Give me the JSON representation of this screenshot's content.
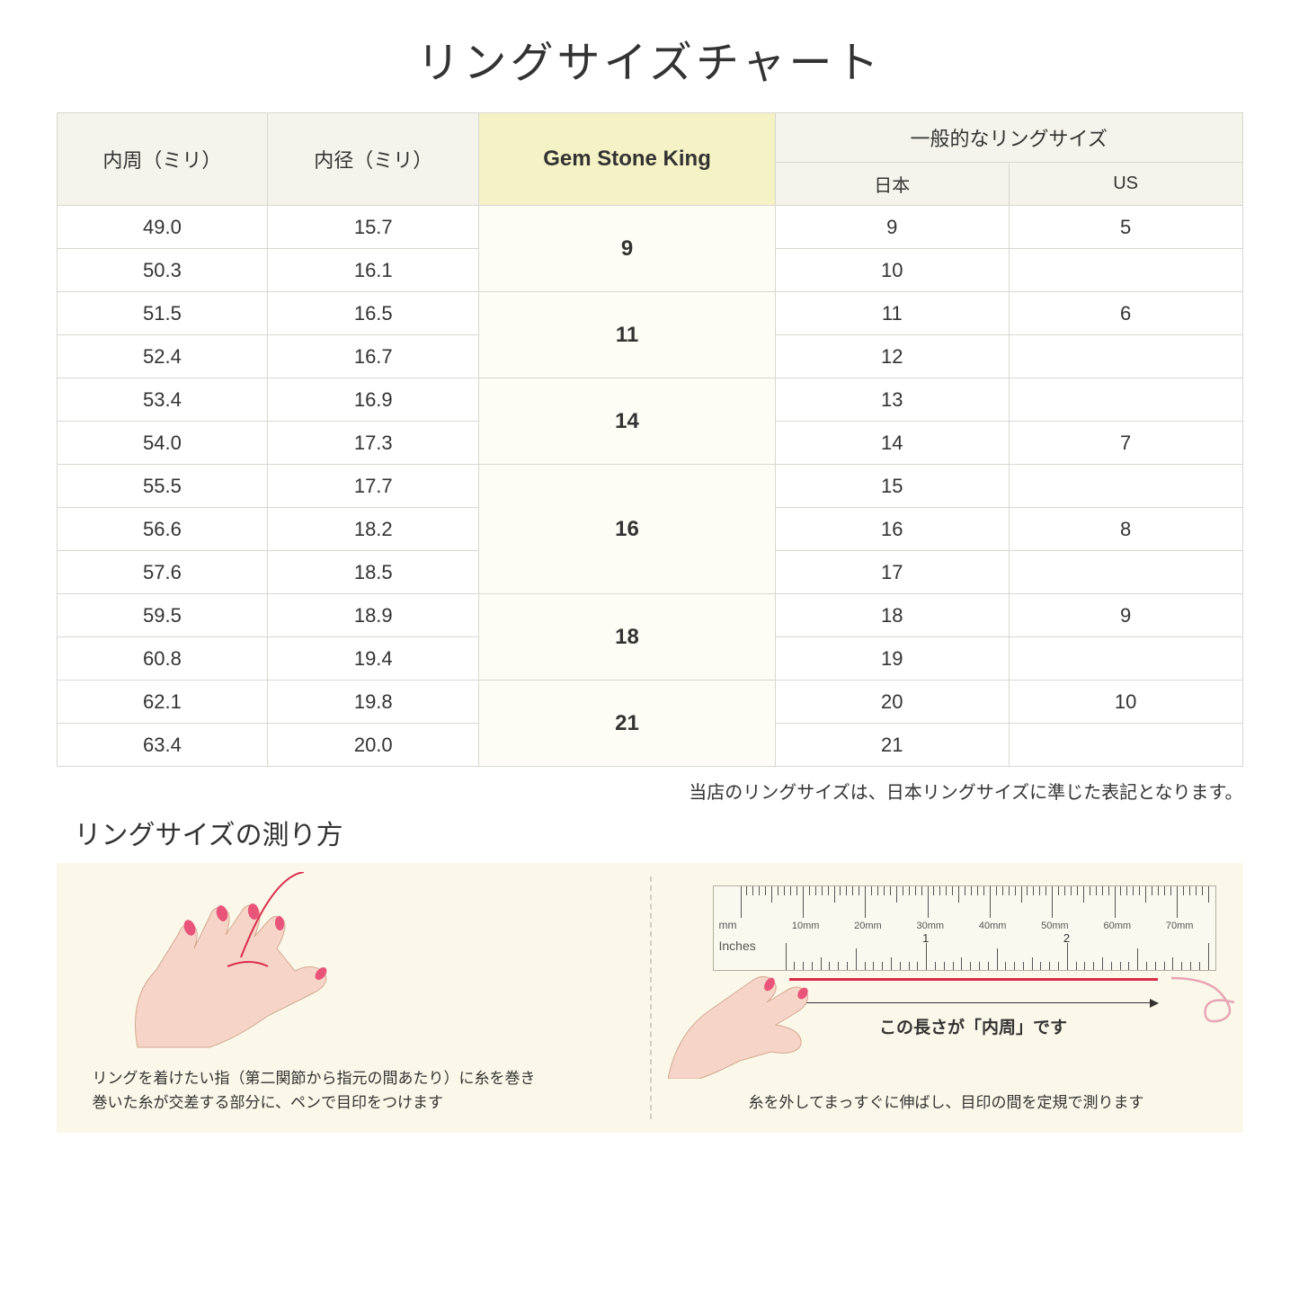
{
  "title": "リングサイズチャート",
  "headers": {
    "circumference": "内周（ミリ）",
    "diameter": "内径（ミリ）",
    "gsk": "Gem Stone King",
    "general": "一般的なリングサイズ",
    "japan": "日本",
    "us": "US"
  },
  "groups": [
    {
      "gsk": "9",
      "rows": [
        {
          "c": "49.0",
          "d": "15.7",
          "jp": "9",
          "us": "5"
        },
        {
          "c": "50.3",
          "d": "16.1",
          "jp": "10",
          "us": ""
        }
      ]
    },
    {
      "gsk": "11",
      "rows": [
        {
          "c": "51.5",
          "d": "16.5",
          "jp": "11",
          "us": "6"
        },
        {
          "c": "52.4",
          "d": "16.7",
          "jp": "12",
          "us": ""
        }
      ]
    },
    {
      "gsk": "14",
      "rows": [
        {
          "c": "53.4",
          "d": "16.9",
          "jp": "13",
          "us": ""
        },
        {
          "c": "54.0",
          "d": "17.3",
          "jp": "14",
          "us": "7"
        }
      ]
    },
    {
      "gsk": "16",
      "rows": [
        {
          "c": "55.5",
          "d": "17.7",
          "jp": "15",
          "us": ""
        },
        {
          "c": "56.6",
          "d": "18.2",
          "jp": "16",
          "us": "8"
        },
        {
          "c": "57.6",
          "d": "18.5",
          "jp": "17",
          "us": ""
        }
      ]
    },
    {
      "gsk": "18",
      "rows": [
        {
          "c": "59.5",
          "d": "18.9",
          "jp": "18",
          "us": "9"
        },
        {
          "c": "60.8",
          "d": "19.4",
          "jp": "19",
          "us": ""
        }
      ]
    },
    {
      "gsk": "21",
      "rows": [
        {
          "c": "62.1",
          "d": "19.8",
          "jp": "20",
          "us": "10"
        },
        {
          "c": "63.4",
          "d": "20.0",
          "jp": "21",
          "us": ""
        }
      ]
    }
  ],
  "note": "当店のリングサイズは、日本リングサイズに準じた表記となります。",
  "howto_title": "リングサイズの測り方",
  "step1": "リングを着けたい指（第二関節から指元の間あたり）に糸を巻き\n巻いた糸が交差する部分に、ペンで目印をつけます",
  "step2": "糸を外してまっすぐに伸ばし、目印の間を定規で測ります",
  "ruler": {
    "mm_label": "mm",
    "inches_label": "Inches",
    "mm_marks": [
      "10mm",
      "20mm",
      "30mm",
      "40mm",
      "50mm",
      "60mm",
      "70mm"
    ],
    "len_label": "この長さが「内周」です"
  },
  "colors": {
    "header_bg": "#f4f4ec",
    "gsk_bg": "#f5f3c6",
    "gsk_cell_bg": "#fdfdf5",
    "howto_bg": "#fbf8e9",
    "red": "#d92c4a",
    "skin": "#f6d5c8",
    "nail": "#e8547a",
    "border": "#d8d8d0"
  }
}
